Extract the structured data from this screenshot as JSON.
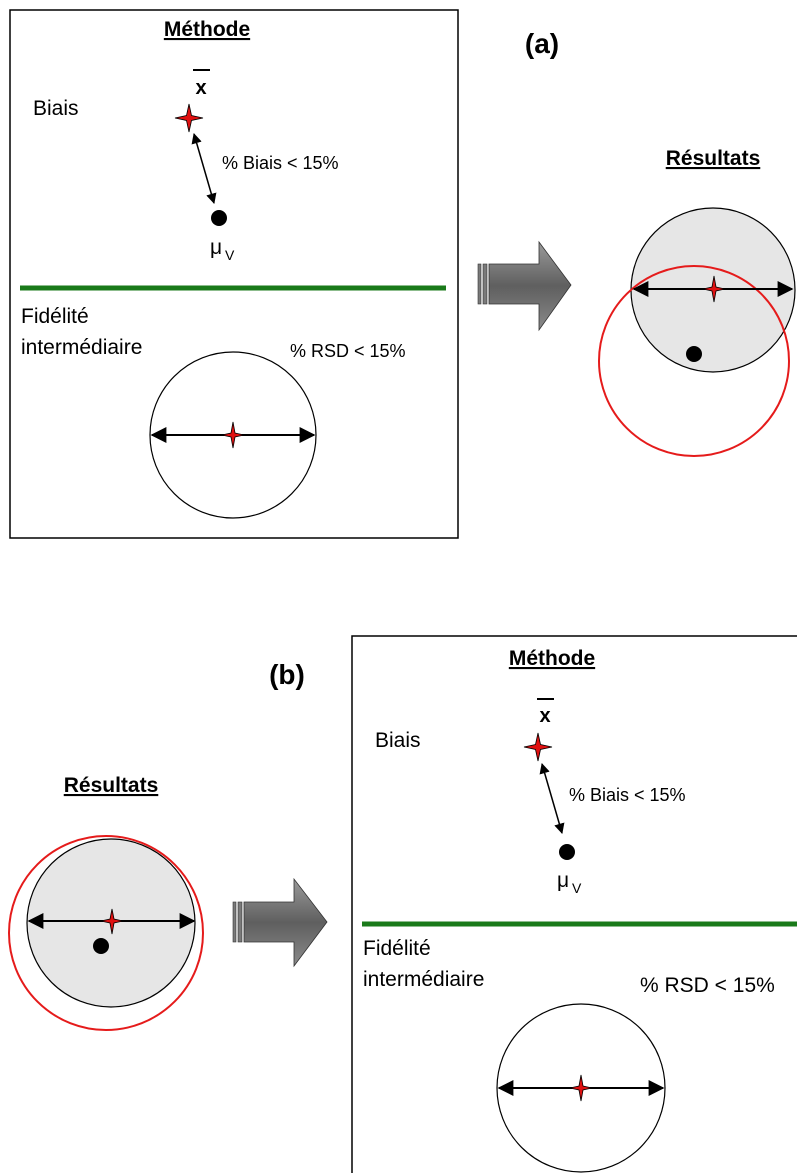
{
  "panel_a": {
    "label": "(a)",
    "method_title": "Méthode",
    "bias_label": "Biais",
    "xbar_symbol": "x",
    "bias_text": "% Biais < 15%",
    "mu_symbol": "μ",
    "mu_subscript": "V",
    "fidelity_line1": "Fidélité",
    "fidelity_line2": "intermédiaire",
    "rsd_text": "% RSD < 15%",
    "results_title": "Résultats"
  },
  "panel_b": {
    "label": "(b)",
    "method_title": "Méthode",
    "bias_label": "Biais",
    "xbar_symbol": "x",
    "bias_text": "% Biais < 15%",
    "mu_symbol": "μ",
    "mu_subscript": "V",
    "fidelity_line1": "Fidélité",
    "fidelity_line2": "intermédiaire",
    "rsd_text": "% RSD < 15%",
    "results_title": "Résultats"
  },
  "colors": {
    "separator_line": "#1a7a1a",
    "star": "#e01010",
    "result_circle": "#e51b1b",
    "shaded_circle": "#e6e6e6",
    "arrow_fill": "#6e6e6e"
  }
}
